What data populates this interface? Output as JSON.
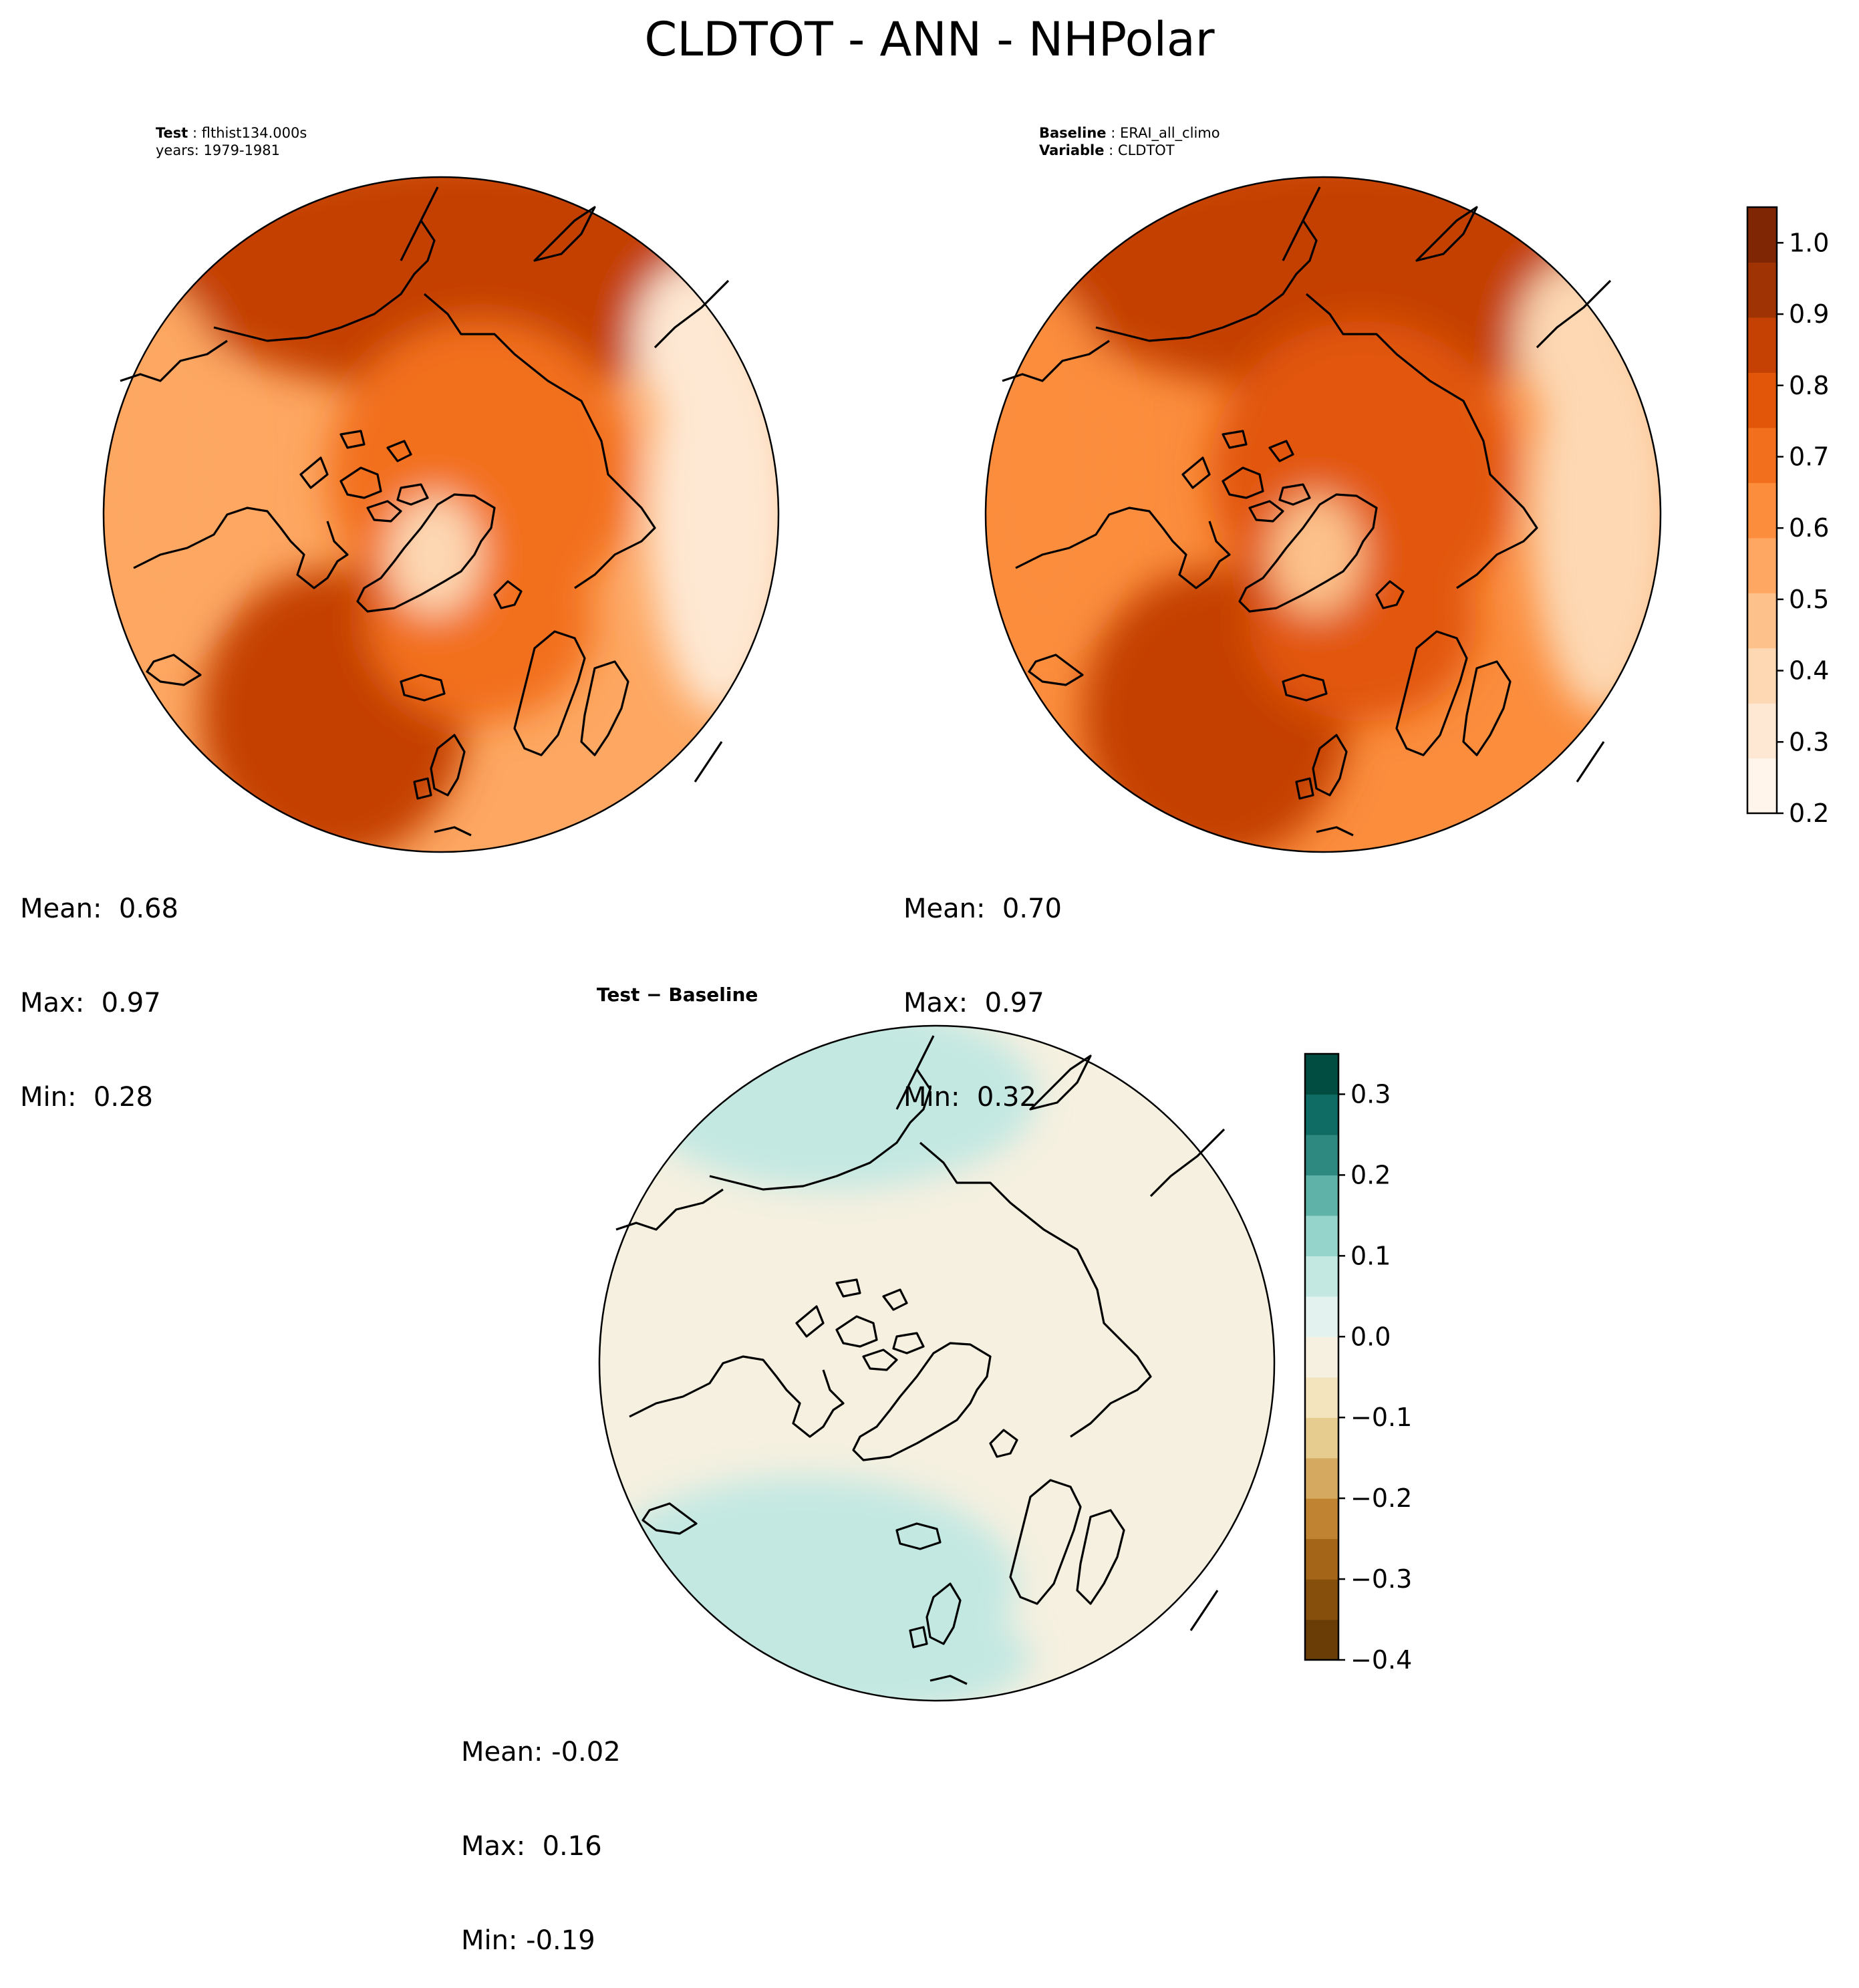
{
  "figure": {
    "title": "CLDTOT - ANN - NHPolar"
  },
  "test_panel": {
    "header_label": "Test",
    "header_value": "flthist134.000s",
    "years_line": "years: 1979-1981",
    "stats": {
      "mean": "Mean:  0.68",
      "max": "Max:  0.97",
      "min": "Min:  0.28"
    }
  },
  "baseline_panel": {
    "header_label": "Baseline",
    "header_value": "ERAI_all_climo",
    "variable_label": "Variable",
    "variable_value": "CLDTOT",
    "stats": {
      "mean": "Mean:  0.70",
      "max": "Max:  0.97",
      "min": "Min:  0.32"
    }
  },
  "diff_panel": {
    "title": "Test − Baseline",
    "stats": {
      "mean": "Mean: -0.02",
      "max": "Max:  0.16",
      "min": "Min: -0.19"
    }
  },
  "colorbars": {
    "main": {
      "ticks": [
        "0.2",
        "0.3",
        "0.4",
        "0.5",
        "0.6",
        "0.7",
        "0.8",
        "0.9",
        "1.0"
      ],
      "range": [
        0.2,
        1.05
      ],
      "colors": [
        "#fff5eb",
        "#fee8d3",
        "#fdd8b3",
        "#fdc28c",
        "#fda762",
        "#fb8d3d",
        "#f2701d",
        "#e25609",
        "#c44103",
        "#9f3303",
        "#7f2704"
      ]
    },
    "diff": {
      "ticks": [
        "−0.4",
        "−0.3",
        "−0.2",
        "−0.1",
        "0.0",
        "0.1",
        "0.2",
        "0.3"
      ],
      "range": [
        -0.4,
        0.35
      ],
      "colors": [
        "#6a3d07",
        "#86500c",
        "#a46518",
        "#bf8331",
        "#d5aa60",
        "#e6cc8f",
        "#f3e4bd",
        "#f5f0e0",
        "#e3f2ef",
        "#c3e8e2",
        "#95d4ca",
        "#5fb2a7",
        "#2e8a81",
        "#0e6c64",
        "#014d42"
      ]
    }
  },
  "map_fields": {
    "test": {
      "ocean_high": 0.87,
      "ocean_mid": 0.74,
      "outer": 0.55,
      "greenland": 0.42,
      "rim": 0.35
    },
    "baseline": {
      "ocean_high": 0.86,
      "ocean_mid": 0.77,
      "outer": 0.62,
      "greenland": 0.45,
      "rim": 0.4
    },
    "diff": {
      "north_atlantic": 0.07,
      "pacific": 0.08,
      "land": -0.05,
      "background": -0.01
    }
  }
}
